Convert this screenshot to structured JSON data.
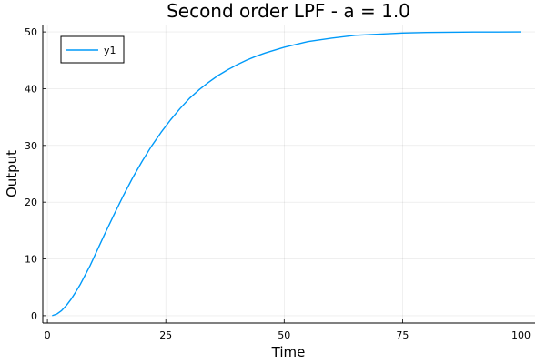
{
  "chart_data": {
    "type": "line",
    "title": "Second order LPF - a = 1.0",
    "xlabel": "Time",
    "ylabel": "Output",
    "xlim": [
      -0.98,
      102.98
    ],
    "ylim": [
      -1.3,
      51.3
    ],
    "xticks": [
      0,
      25,
      50,
      75,
      100
    ],
    "yticks": [
      0,
      10,
      20,
      30,
      40,
      50
    ],
    "xtick_labels": [
      "0",
      "25",
      "50",
      "75",
      "100"
    ],
    "ytick_labels": [
      "0",
      "10",
      "20",
      "30",
      "40",
      "50"
    ],
    "grid": true,
    "legend_position": "top-left",
    "series": [
      {
        "name": "y1",
        "color": "#009AF9",
        "x": [
          1,
          2,
          3,
          4,
          5,
          6,
          7,
          8,
          9,
          10,
          12,
          14,
          16,
          18,
          20,
          22,
          24,
          26,
          28,
          30,
          32,
          34,
          36,
          38,
          40,
          42,
          44,
          46,
          48,
          50,
          55,
          60,
          65,
          70,
          75,
          80,
          85,
          90,
          95,
          100
        ],
        "y": [
          0.0,
          0.3,
          0.9,
          1.8,
          2.9,
          4.2,
          5.6,
          7.2,
          8.8,
          10.6,
          14.2,
          17.7,
          21.1,
          24.3,
          27.2,
          29.9,
          32.3,
          34.5,
          36.5,
          38.3,
          39.8,
          41.1,
          42.3,
          43.3,
          44.2,
          45.0,
          45.7,
          46.3,
          46.8,
          47.3,
          48.3,
          48.9,
          49.4,
          49.6,
          49.8,
          49.9,
          49.95,
          49.98,
          49.99,
          50.0
        ]
      }
    ]
  }
}
